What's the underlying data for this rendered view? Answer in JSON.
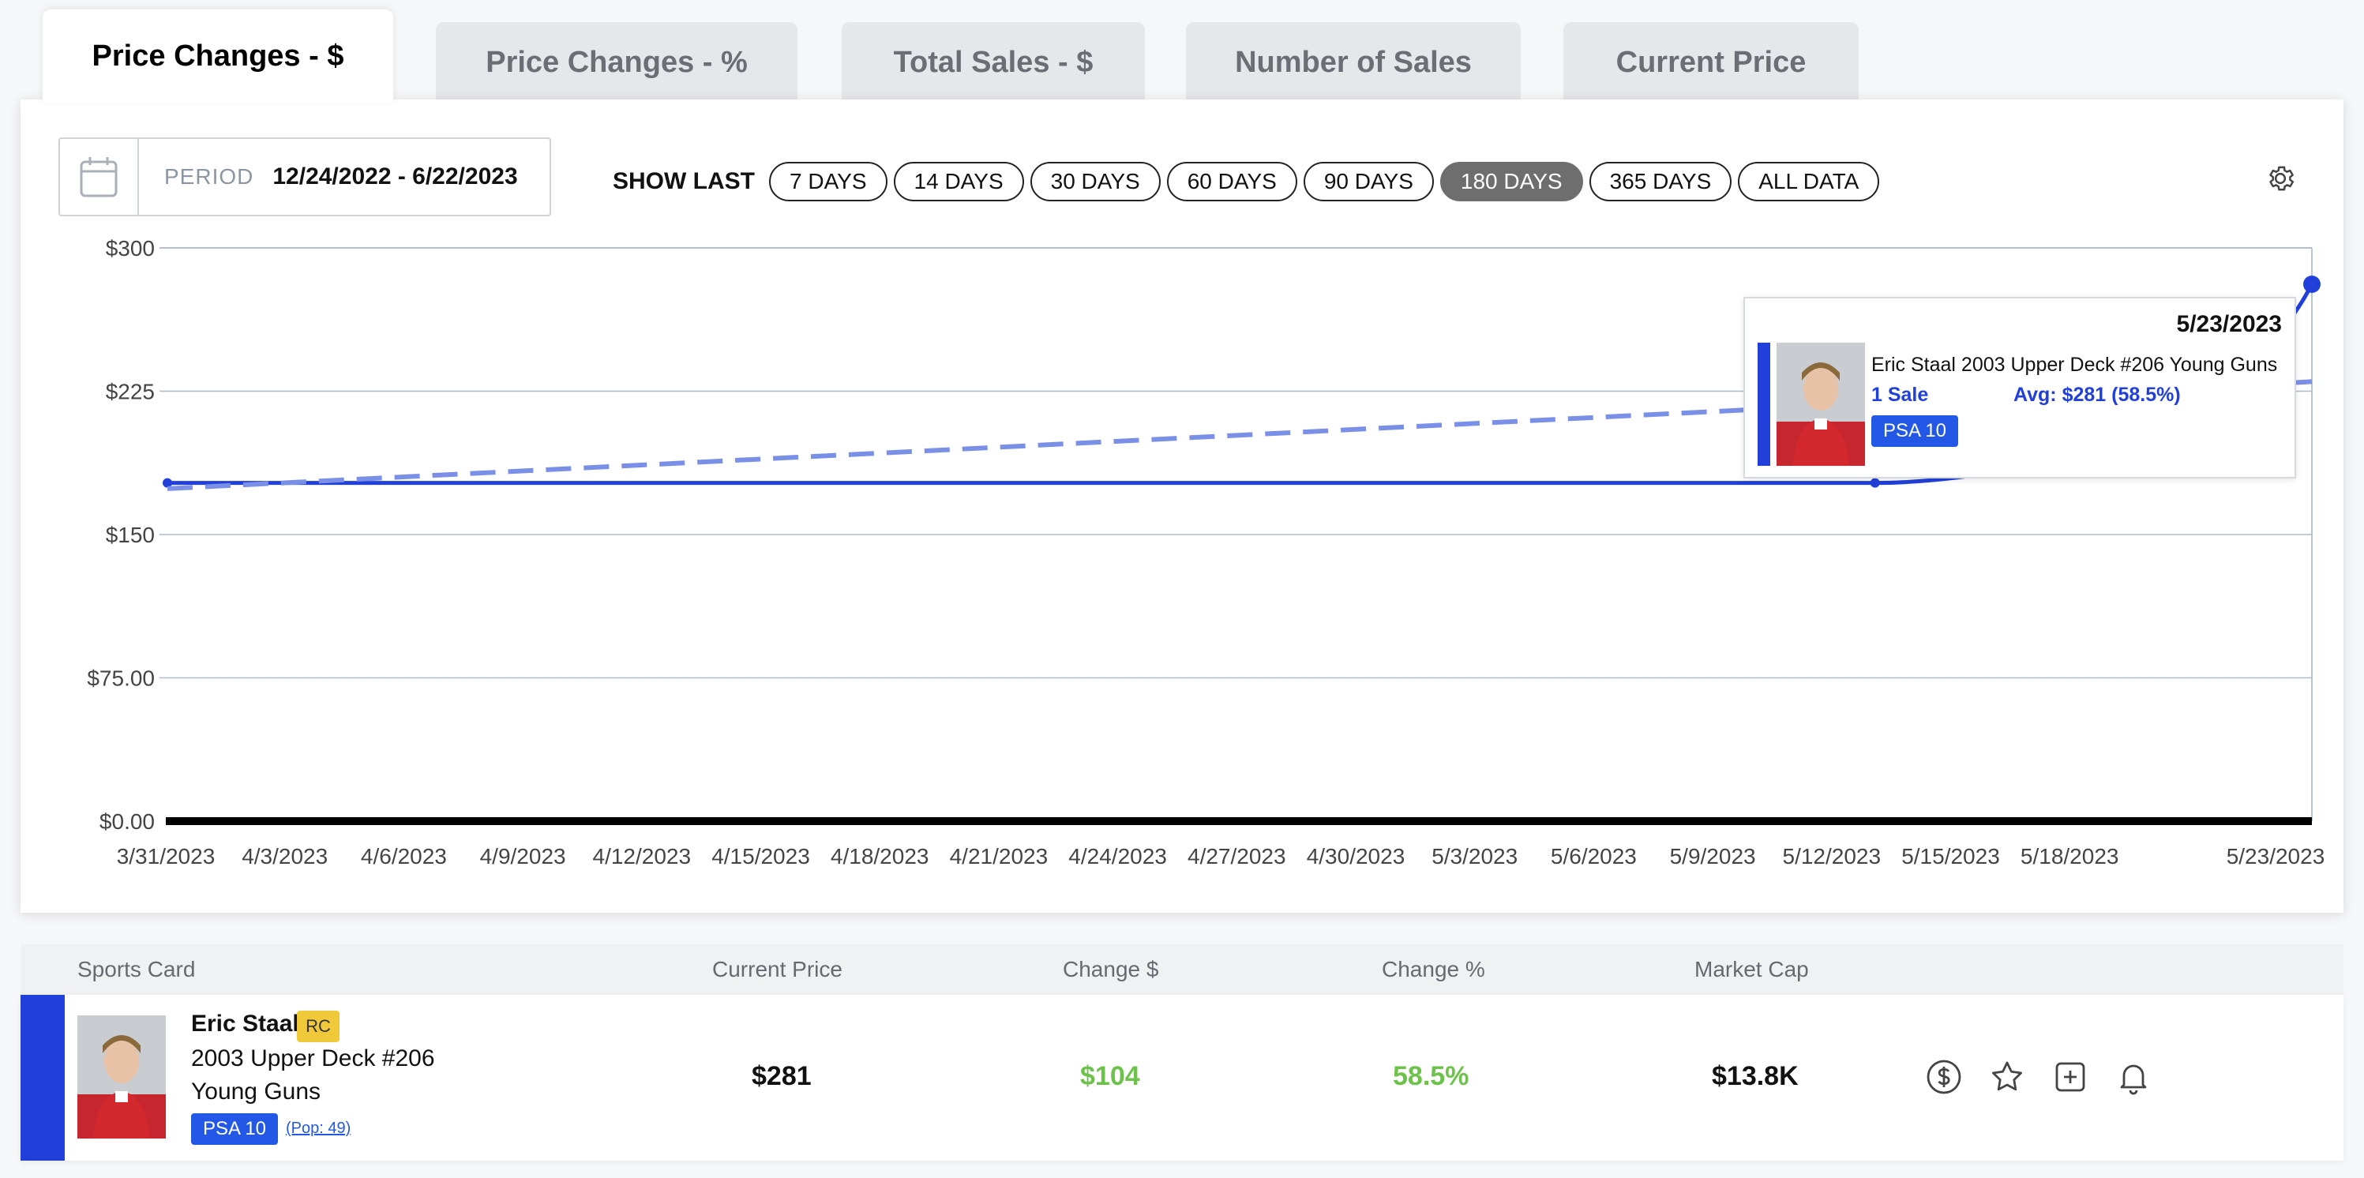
{
  "tabs": [
    {
      "label": "Price Changes - $",
      "active": true
    },
    {
      "label": "Price Changes - %",
      "active": false
    },
    {
      "label": "Total Sales - $",
      "active": false
    },
    {
      "label": "Number of Sales",
      "active": false
    },
    {
      "label": "Current Price",
      "active": false
    }
  ],
  "period": {
    "label": "PERIOD",
    "value": "12/24/2022 - 6/22/2023"
  },
  "show_last": {
    "label": "SHOW LAST",
    "options": [
      "7 DAYS",
      "14 DAYS",
      "30 DAYS",
      "60 DAYS",
      "90 DAYS",
      "180 DAYS",
      "365 DAYS",
      "ALL DATA"
    ],
    "selected": "180 DAYS"
  },
  "icons": {
    "calendar": "calendar-icon",
    "settings": "gear-icon"
  },
  "chart_data": {
    "type": "line",
    "y_tick_labels": [
      "$300",
      "$225",
      "$150",
      "$75.00",
      "$0.00"
    ],
    "ylim": [
      0,
      300
    ],
    "x_tick_labels": [
      "3/31/2023",
      "4/3/2023",
      "4/6/2023",
      "4/9/2023",
      "4/12/2023",
      "4/15/2023",
      "4/18/2023",
      "4/21/2023",
      "4/24/2023",
      "4/27/2023",
      "4/30/2023",
      "5/3/2023",
      "5/6/2023",
      "5/9/2023",
      "5/12/2023",
      "5/15/2023",
      "5/18/2023",
      "5/23/2023"
    ],
    "grid": true,
    "series": [
      {
        "style": "solid",
        "color": "#2140d9",
        "points": [
          {
            "x": "3/30/2023",
            "y": 177
          },
          {
            "x": "5/12/2023",
            "y": 177
          },
          {
            "x": "5/23/2023",
            "y": 281
          }
        ]
      },
      {
        "style": "dashed",
        "color": "#7a8fe6",
        "points": [
          {
            "x": "3/30/2023",
            "y": 174
          },
          {
            "x": "5/23/2023",
            "y": 230
          }
        ]
      }
    ]
  },
  "tooltip": {
    "date": "5/23/2023",
    "card_name": "Eric Staal 2003 Upper Deck #206 Young Guns",
    "sales": "1 Sale",
    "avg": "Avg: $281 (58.5%)",
    "grade": "PSA 10"
  },
  "table": {
    "headers": [
      "Sports Card",
      "Current Price",
      "Change $",
      "Change %",
      "Market Cap"
    ],
    "row": {
      "player": "Eric Staal",
      "rc_badge": "RC",
      "line2": "2003 Upper Deck #206",
      "line3": "Young Guns",
      "grade": "PSA 10",
      "pop": "(Pop: 49)",
      "current_price": "$281",
      "change_usd": "$104",
      "change_pct": "58.5%",
      "market_cap": "$13.8K",
      "change_color": "#6cc24a"
    },
    "actions": [
      "dollar-circle-icon",
      "star-icon",
      "add-square-icon",
      "bell-icon"
    ]
  }
}
